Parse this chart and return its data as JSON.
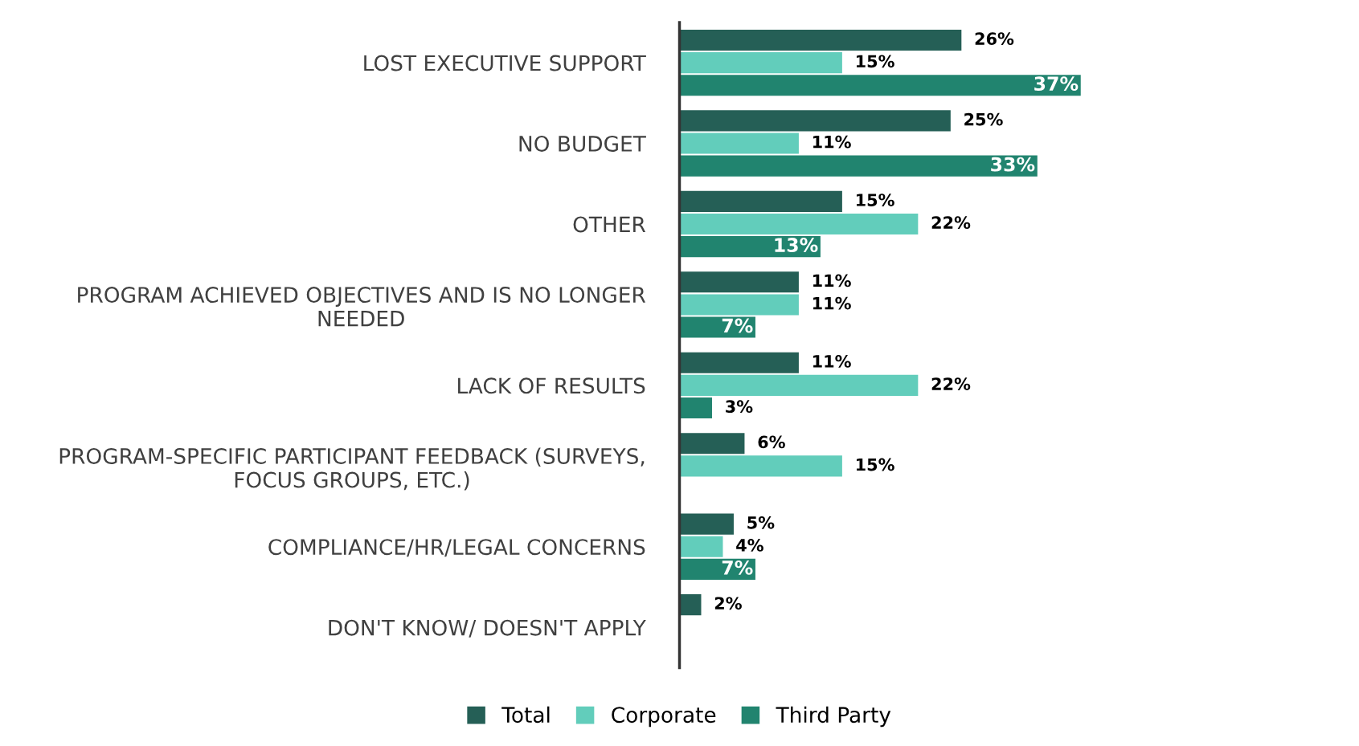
{
  "chart_data": {
    "type": "bar",
    "orientation": "horizontal",
    "categories": [
      "LOST EXECUTIVE SUPPORT",
      "NO BUDGET",
      "OTHER",
      "PROGRAM ACHIEVED OBJECTIVES AND IS NO LONGER\nNEEDED",
      "LACK OF RESULTS",
      "PROGRAM-SPECIFIC PARTICIPANT FEEDBACK (SURVEYS,\nFOCUS GROUPS, ETC.)",
      "COMPLIANCE/HR/LEGAL CONCERNS",
      "DON'T KNOW/ DOESN'T APPLY"
    ],
    "series": [
      {
        "name": "Total",
        "color": "#255f56",
        "values": [
          26,
          25,
          15,
          11,
          11,
          6,
          5,
          2
        ],
        "value_labels": [
          "26%",
          "25%",
          "15%",
          "11%",
          "11%",
          "6%",
          "5%",
          "2%"
        ]
      },
      {
        "name": "Corporate",
        "color": "#62cdbb",
        "values": [
          15,
          11,
          22,
          11,
          22,
          15,
          4,
          null
        ],
        "value_labels": [
          "15%",
          "11%",
          "22%",
          "11%",
          "22%",
          "15%",
          "4%",
          null
        ]
      },
      {
        "name": "Third Party",
        "color": "#21846f",
        "values": [
          37,
          33,
          13,
          7,
          3,
          null,
          7,
          null
        ],
        "value_labels": [
          "37%",
          "33%",
          "13%",
          "7%",
          "3%",
          null,
          "7%",
          null
        ]
      }
    ],
    "legend": "bottom",
    "grid": false,
    "tick_labels": "y"
  }
}
